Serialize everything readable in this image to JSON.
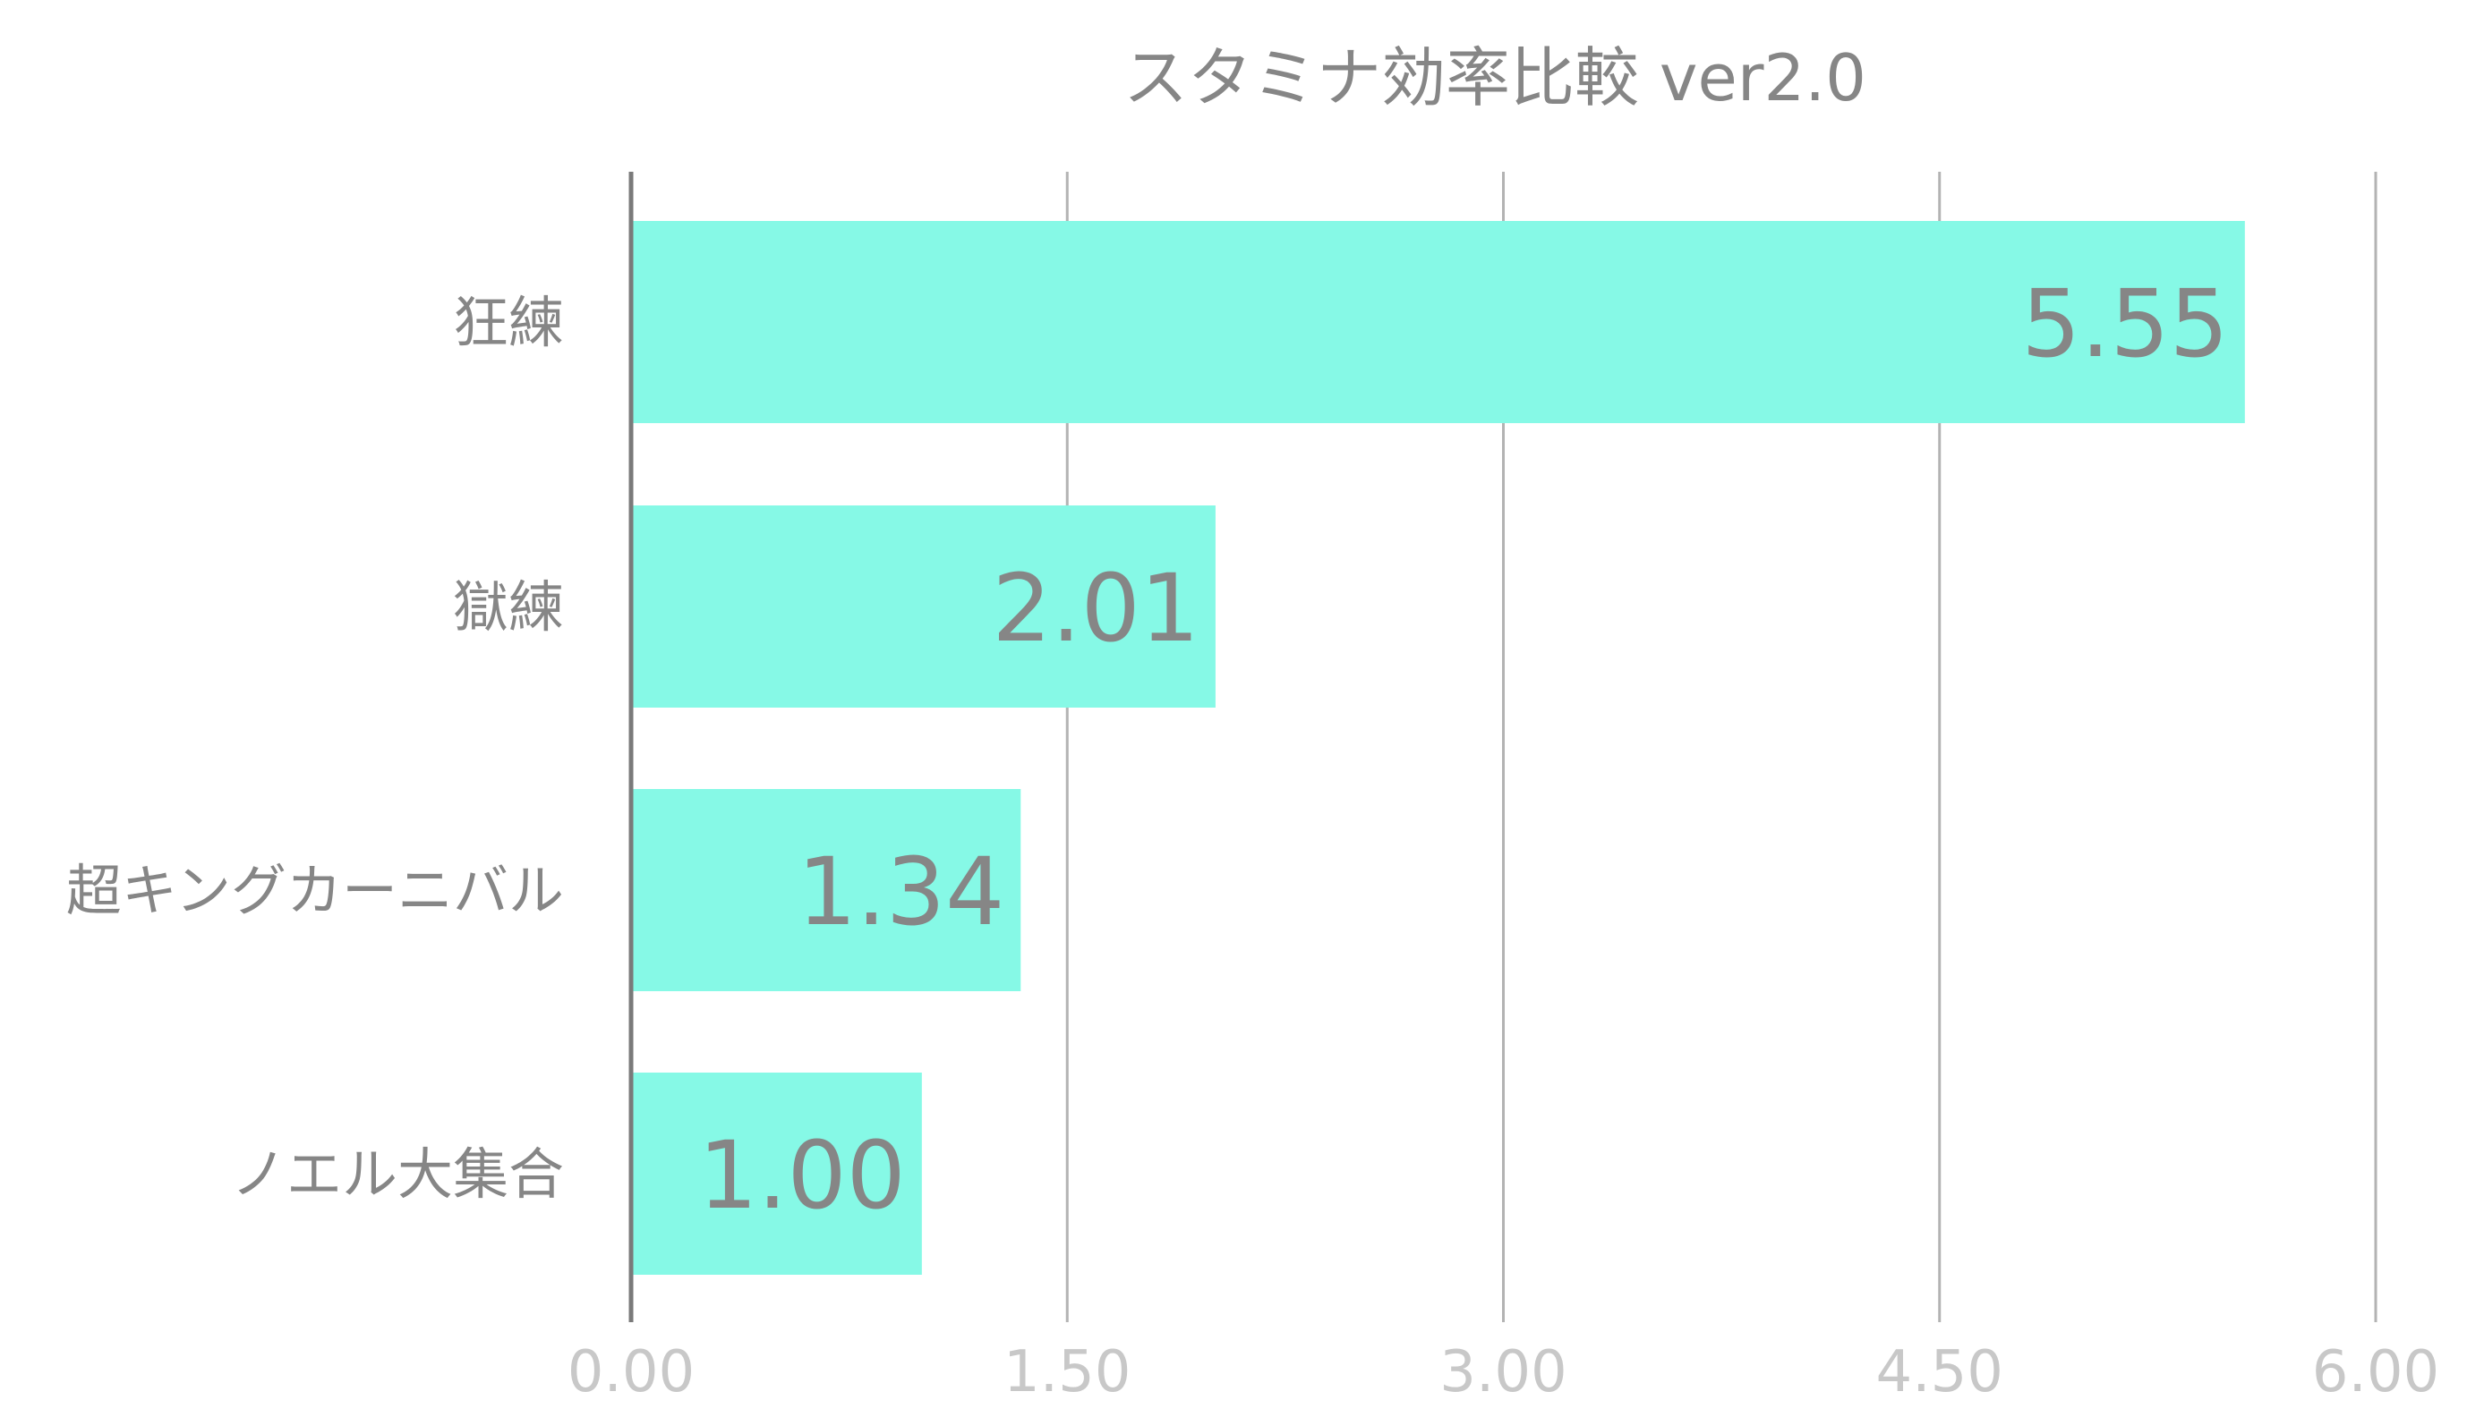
{
  "chart_data": {
    "type": "bar",
    "orientation": "horizontal",
    "title": "スタミナ効率比較 ver2.0",
    "categories": [
      "狂練",
      "獄練",
      "超キングカーニバル",
      "ノエル大集合"
    ],
    "values": [
      5.55,
      2.01,
      1.34,
      1.0
    ],
    "value_labels": [
      "5.55",
      "2.01",
      "1.34",
      "1.00"
    ],
    "xlim": [
      0,
      6
    ],
    "xticks": [
      0,
      1.5,
      3,
      4.5,
      6
    ],
    "xtick_labels": [
      "0.00",
      "1.50",
      "3.00",
      "4.50",
      "6.00"
    ],
    "xlabel": "",
    "ylabel": "",
    "grid": "vertical",
    "legend": "none"
  },
  "colors": {
    "bar": "#86f9e6",
    "grid": "#b3b3b3",
    "axis": "#7a7a7a",
    "title_text": "#868686",
    "category_text": "#868686",
    "value_text": "#868686",
    "tick_text": "#c8c8c8"
  }
}
